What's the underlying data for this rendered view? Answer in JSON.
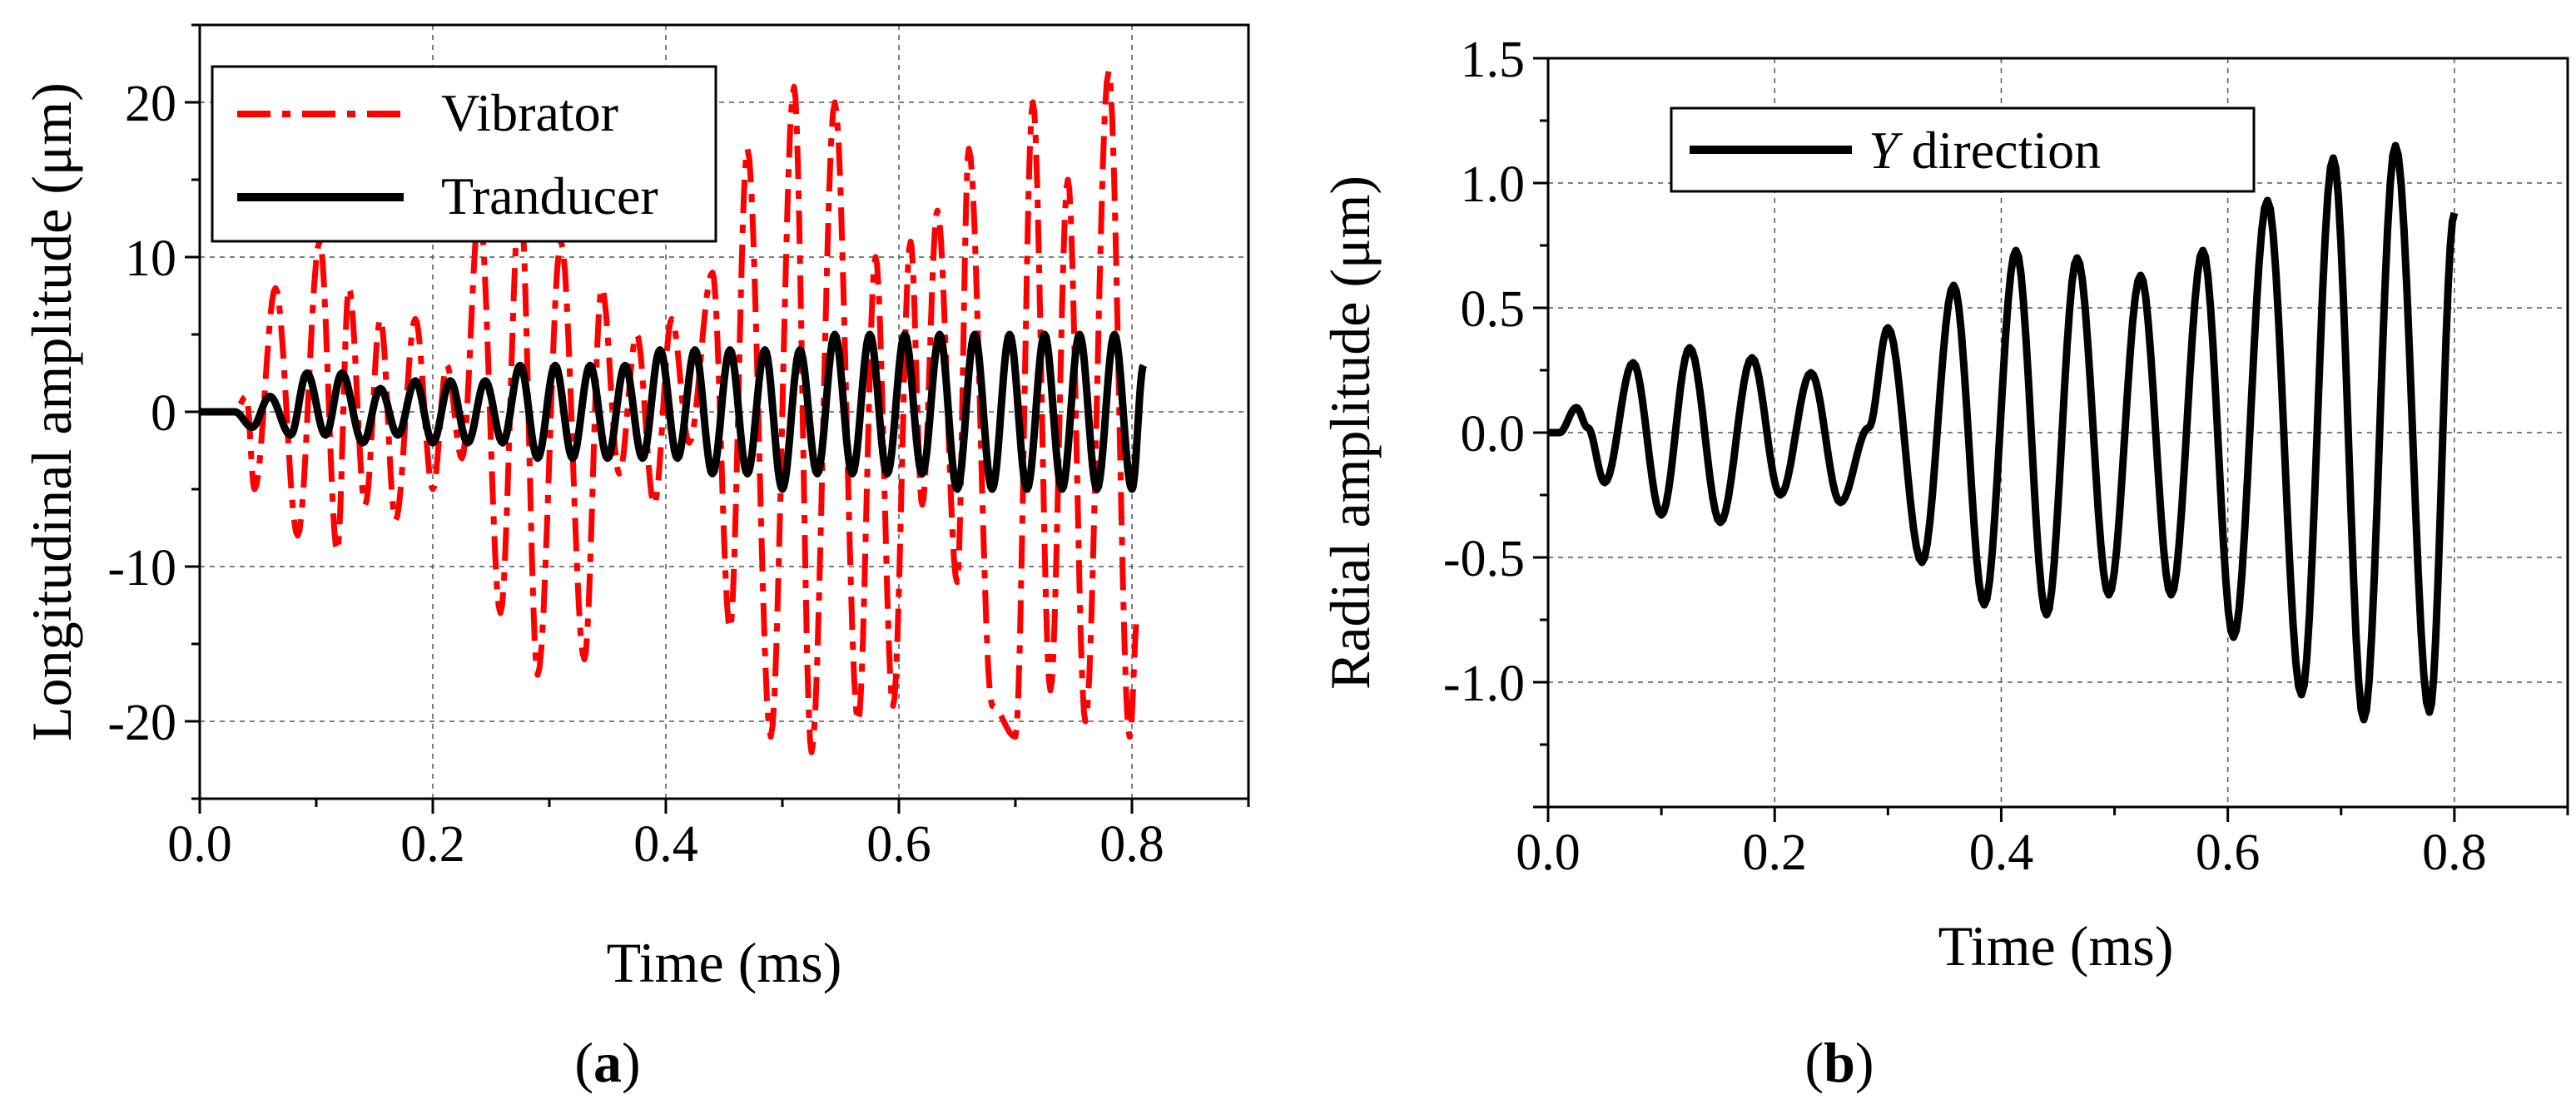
{
  "chart_data": [
    {
      "type": "line",
      "panel_label": "a",
      "xlabel": "Time (ms)",
      "ylabel": "Longitudinal amplitude (μm)",
      "xlim": [
        0.0,
        0.9
      ],
      "ylim": [
        -25,
        25
      ],
      "xticks": [
        0.0,
        0.2,
        0.4,
        0.6,
        0.8
      ],
      "yticks": [
        -20,
        -10,
        0,
        10,
        20
      ],
      "xtick_labels": [
        "0.0",
        "0.2",
        "0.4",
        "0.6",
        "0.8"
      ],
      "ytick_labels": [
        "-20",
        "-10",
        "0",
        "10",
        "20"
      ],
      "grid": true,
      "legend_position": "top-left",
      "series": [
        {
          "name": "Vibrator",
          "color": "#ff0000",
          "style": "dash-dot",
          "extrema": [
            [
              0.0,
              0
            ],
            [
              0.03,
              0
            ],
            [
              0.04,
              1
            ],
            [
              0.047,
              -5
            ],
            [
              0.065,
              8
            ],
            [
              0.084,
              -8
            ],
            [
              0.103,
              11
            ],
            [
              0.118,
              -9
            ],
            [
              0.128,
              8
            ],
            [
              0.142,
              -6
            ],
            [
              0.155,
              6
            ],
            [
              0.168,
              -7
            ],
            [
              0.185,
              6
            ],
            [
              0.2,
              -5
            ],
            [
              0.212,
              3
            ],
            [
              0.225,
              -3
            ],
            [
              0.24,
              13
            ],
            [
              0.258,
              -13
            ],
            [
              0.275,
              14
            ],
            [
              0.29,
              -17
            ],
            [
              0.31,
              11
            ],
            [
              0.33,
              -16
            ],
            [
              0.345,
              8
            ],
            [
              0.36,
              -4
            ],
            [
              0.375,
              5
            ],
            [
              0.39,
              -6
            ],
            [
              0.405,
              6
            ],
            [
              0.42,
              -2
            ],
            [
              0.44,
              9
            ],
            [
              0.455,
              -14
            ],
            [
              0.47,
              17
            ],
            [
              0.49,
              -21
            ],
            [
              0.51,
              21
            ],
            [
              0.525,
              -22
            ],
            [
              0.545,
              20
            ],
            [
              0.565,
              -20
            ],
            [
              0.58,
              10
            ],
            [
              0.595,
              -19
            ],
            [
              0.61,
              11
            ],
            [
              0.62,
              -6
            ],
            [
              0.633,
              13
            ],
            [
              0.65,
              -11
            ],
            [
              0.66,
              17
            ],
            [
              0.68,
              -19
            ],
            [
              0.7,
              -21
            ],
            [
              0.715,
              20
            ],
            [
              0.73,
              -18
            ],
            [
              0.745,
              15
            ],
            [
              0.76,
              -20
            ],
            [
              0.78,
              22
            ],
            [
              0.798,
              -21
            ],
            [
              0.805,
              -13
            ]
          ]
        },
        {
          "name": "Tranducer",
          "color": "#000000",
          "style": "solid",
          "extrema": [
            [
              0.0,
              0
            ],
            [
              0.03,
              0
            ],
            [
              0.045,
              -1
            ],
            [
              0.06,
              1
            ],
            [
              0.078,
              -1.5
            ],
            [
              0.092,
              2.5
            ],
            [
              0.108,
              -1.5
            ],
            [
              0.122,
              2.5
            ],
            [
              0.14,
              -2
            ],
            [
              0.155,
              1.5
            ],
            [
              0.17,
              -1.5
            ],
            [
              0.185,
              2
            ],
            [
              0.2,
              -2
            ],
            [
              0.215,
              2
            ],
            [
              0.23,
              -2
            ],
            [
              0.245,
              2
            ],
            [
              0.26,
              -2
            ],
            [
              0.275,
              3
            ],
            [
              0.29,
              -3
            ],
            [
              0.305,
              3
            ],
            [
              0.32,
              -3
            ],
            [
              0.335,
              3
            ],
            [
              0.35,
              -3
            ],
            [
              0.365,
              3
            ],
            [
              0.38,
              -3
            ],
            [
              0.395,
              4
            ],
            [
              0.41,
              -3
            ],
            [
              0.425,
              4
            ],
            [
              0.44,
              -4
            ],
            [
              0.455,
              4
            ],
            [
              0.47,
              -4
            ],
            [
              0.485,
              4
            ],
            [
              0.5,
              -5
            ],
            [
              0.515,
              4
            ],
            [
              0.53,
              -4
            ],
            [
              0.545,
              5
            ],
            [
              0.56,
              -4
            ],
            [
              0.575,
              5
            ],
            [
              0.59,
              -4
            ],
            [
              0.605,
              5
            ],
            [
              0.62,
              -4
            ],
            [
              0.635,
              5
            ],
            [
              0.65,
              -5
            ],
            [
              0.665,
              5
            ],
            [
              0.68,
              -5
            ],
            [
              0.695,
              5
            ],
            [
              0.71,
              -5
            ],
            [
              0.725,
              5
            ],
            [
              0.74,
              -5
            ],
            [
              0.755,
              5
            ],
            [
              0.77,
              -5
            ],
            [
              0.785,
              5
            ],
            [
              0.8,
              -5
            ],
            [
              0.81,
              3
            ]
          ]
        }
      ]
    },
    {
      "type": "line",
      "panel_label": "b",
      "xlabel": "Time (ms)",
      "ylabel": "Radial amplitude (μm)",
      "xlim": [
        0.0,
        0.9
      ],
      "ylim": [
        -1.5,
        1.5
      ],
      "xticks": [
        0.0,
        0.2,
        0.4,
        0.6,
        0.8
      ],
      "yticks": [
        -1.0,
        -0.5,
        0.0,
        0.5,
        1.0,
        1.5
      ],
      "xtick_labels": [
        "0.0",
        "0.2",
        "0.4",
        "0.6",
        "0.8"
      ],
      "ytick_labels": [
        "-1.0",
        "-0.5",
        "0.0",
        "0.5",
        "1.0",
        "1.5"
      ],
      "grid": true,
      "legend_position": "top-left",
      "series": [
        {
          "name_italic": "Y",
          "name_rest": " direction",
          "color": "#000000",
          "style": "solid",
          "extrema": [
            [
              0.0,
              0
            ],
            [
              0.01,
              0
            ],
            [
              0.025,
              0.1
            ],
            [
              0.035,
              0.02
            ],
            [
              0.05,
              -0.2
            ],
            [
              0.075,
              0.28
            ],
            [
              0.1,
              -0.33
            ],
            [
              0.125,
              0.34
            ],
            [
              0.152,
              -0.36
            ],
            [
              0.18,
              0.3
            ],
            [
              0.205,
              -0.25
            ],
            [
              0.232,
              0.24
            ],
            [
              0.258,
              -0.28
            ],
            [
              0.283,
              0.02
            ],
            [
              0.3,
              0.42
            ],
            [
              0.33,
              -0.52
            ],
            [
              0.358,
              0.59
            ],
            [
              0.385,
              -0.69
            ],
            [
              0.413,
              0.73
            ],
            [
              0.44,
              -0.73
            ],
            [
              0.467,
              0.7
            ],
            [
              0.495,
              -0.65
            ],
            [
              0.523,
              0.63
            ],
            [
              0.55,
              -0.65
            ],
            [
              0.578,
              0.73
            ],
            [
              0.605,
              -0.82
            ],
            [
              0.635,
              0.93
            ],
            [
              0.665,
              -1.05
            ],
            [
              0.693,
              1.1
            ],
            [
              0.72,
              -1.15
            ],
            [
              0.748,
              1.15
            ],
            [
              0.778,
              -1.12
            ],
            [
              0.8,
              0.88
            ]
          ]
        }
      ]
    }
  ]
}
